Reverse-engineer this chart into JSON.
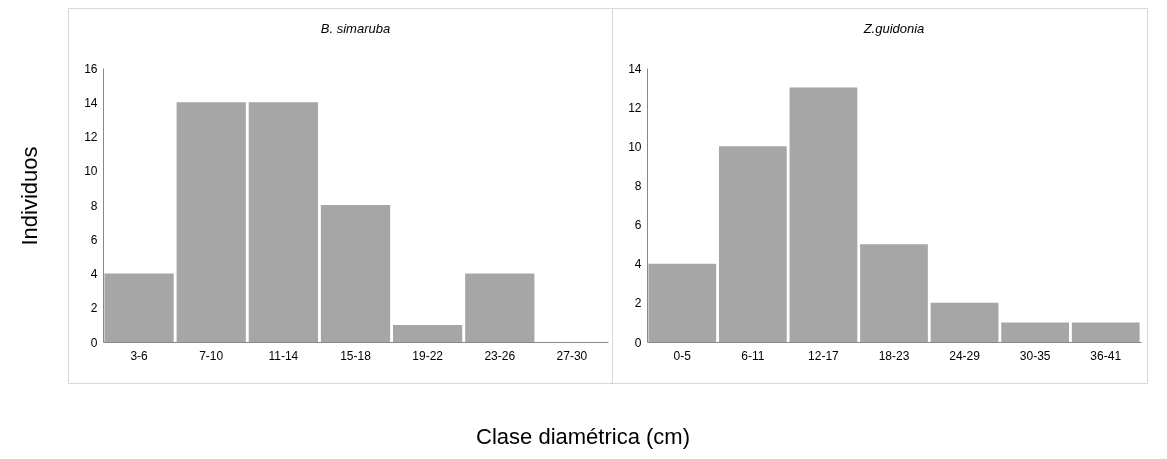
{
  "chart_data": [
    {
      "type": "bar",
      "title": "B. simaruba",
      "ylabel": "Individuos",
      "xlabel": "Clase diamétrica (cm)",
      "categories": [
        "3-6",
        "7-10",
        "11-14",
        "15-18",
        "19-22",
        "23-26",
        "27-30"
      ],
      "values": [
        4,
        14,
        14,
        8,
        1,
        4,
        0
      ],
      "color": "#a6a6a6",
      "ylim": [
        0,
        16
      ],
      "yticks": [
        0,
        2,
        4,
        6,
        8,
        10,
        12,
        14,
        16
      ]
    },
    {
      "type": "bar",
      "title": "Z.guidonia",
      "categories": [
        "0-5",
        "6-11",
        "12-17",
        "18-23",
        "24-29",
        "30-35",
        "36-41"
      ],
      "values": [
        4,
        10,
        13,
        5,
        2,
        1,
        1
      ],
      "color": "#a6a6a6",
      "ylim": [
        0,
        14
      ],
      "yticks": [
        0,
        2,
        4,
        6,
        8,
        10,
        12,
        14
      ]
    }
  ]
}
